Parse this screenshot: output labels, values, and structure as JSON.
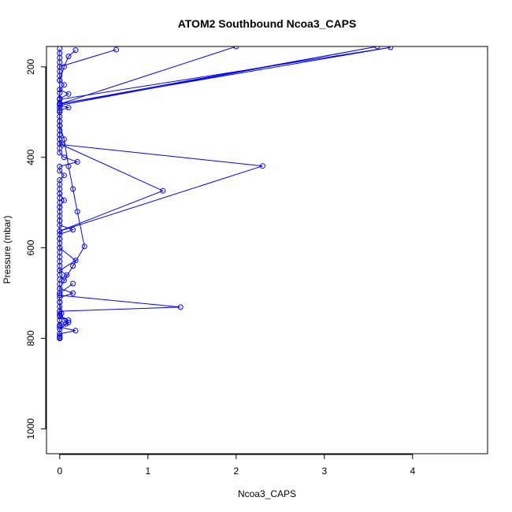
{
  "chart_data": {
    "type": "line",
    "title": "ATOM2 Southbound Ncoa3_CAPS",
    "xlabel": "Ncoa3_CAPS",
    "ylabel": "Pressure (mbar)",
    "xlim": [
      -0.15,
      4.85
    ],
    "ylim": [
      1055,
      155
    ],
    "y_reversed": true,
    "x_ticks": [
      0,
      1,
      2,
      3,
      4
    ],
    "y_ticks": [
      200,
      400,
      600,
      800,
      1000
    ],
    "grid": false,
    "legend": "none",
    "series_color": "#0000ff",
    "series": [
      {
        "x": [
          0.0,
          0.0,
          0.0,
          0.0,
          0.0,
          0.0,
          0.0,
          0.0,
          0.05,
          0.0,
          0.1,
          0.0,
          0.0,
          0.0,
          0.0,
          0.0,
          0.0,
          0.0,
          0.0,
          0.0,
          0.0,
          0.0,
          0.0,
          0.0,
          0.05,
          0.2,
          0.0,
          0.0,
          0.05,
          0.0,
          0.0,
          0.0,
          0.0,
          0.0,
          0.0,
          0.0,
          0.0,
          0.0,
          0.0,
          0.0,
          0.15,
          0.0,
          0.0,
          0.0,
          0.0,
          0.0,
          0.0,
          0.0,
          0.0,
          0.0,
          0.08,
          0.0,
          0.0,
          0.0,
          0.15,
          0.0,
          0.0,
          0.0,
          0.0,
          0.0,
          0.0,
          0.0
        ],
        "y": [
          160,
          170,
          180,
          190,
          200,
          210,
          220,
          230,
          240,
          250,
          260,
          270,
          280,
          290,
          300,
          310,
          320,
          330,
          340,
          350,
          360,
          370,
          380,
          390,
          400,
          410,
          420,
          430,
          440,
          450,
          460,
          470,
          480,
          490,
          500,
          510,
          520,
          530,
          540,
          550,
          560,
          570,
          580,
          590,
          600,
          610,
          620,
          630,
          640,
          650,
          660,
          670,
          680,
          690,
          700,
          710,
          720,
          730,
          740,
          750,
          760,
          770
        ]
      },
      {
        "x": [
          0.18,
          0.1,
          0.05,
          0.0,
          0.0,
          0.0,
          3.75,
          0.0,
          0.0,
          0.0,
          0.05,
          0.1,
          0.15,
          0.2,
          0.28,
          0.15,
          0.0,
          0.0,
          0.0,
          0.02,
          0.05,
          0.1,
          0.0,
          0.0,
          0.0,
          0.0
        ],
        "y": [
          163,
          177,
          200,
          230,
          258,
          272,
          157,
          282,
          300,
          330,
          360,
          420,
          470,
          520,
          597,
          640,
          690,
          700,
          720,
          745,
          760,
          765,
          780,
          790,
          798,
          800
        ]
      },
      {
        "x": [
          0.64,
          0.0,
          0.0,
          3.6,
          0.0,
          0.1,
          0.0,
          0.0,
          0.0
        ],
        "y": [
          162,
          200,
          282,
          155,
          285,
          290,
          296,
          320,
          350
        ]
      },
      {
        "x": [
          2.0,
          0.0,
          0.0,
          0.0,
          1.17,
          0.0,
          0.0,
          0.0,
          0.05,
          0.0
        ],
        "y": [
          155,
          282,
          330,
          370,
          474,
          563,
          540,
          510,
          495,
          480
        ]
      },
      {
        "x": [
          0.0,
          0.03,
          2.3,
          0.0,
          0.0,
          0.0,
          0.18,
          0.0,
          0.0,
          0.05
        ],
        "y": [
          360,
          372,
          419,
          563,
          580,
          600,
          628,
          650,
          660,
          672
        ]
      },
      {
        "x": [
          0.15,
          0.0,
          0.0,
          1.37,
          0.0,
          0.0,
          0.0,
          0.1,
          0.07,
          0.0,
          0.0,
          0.18,
          0.0,
          0.0,
          0.0
        ],
        "y": [
          679,
          700,
          705,
          731,
          740,
          746,
          752,
          760,
          768,
          772,
          775,
          783,
          790,
          795,
          800
        ]
      }
    ]
  }
}
